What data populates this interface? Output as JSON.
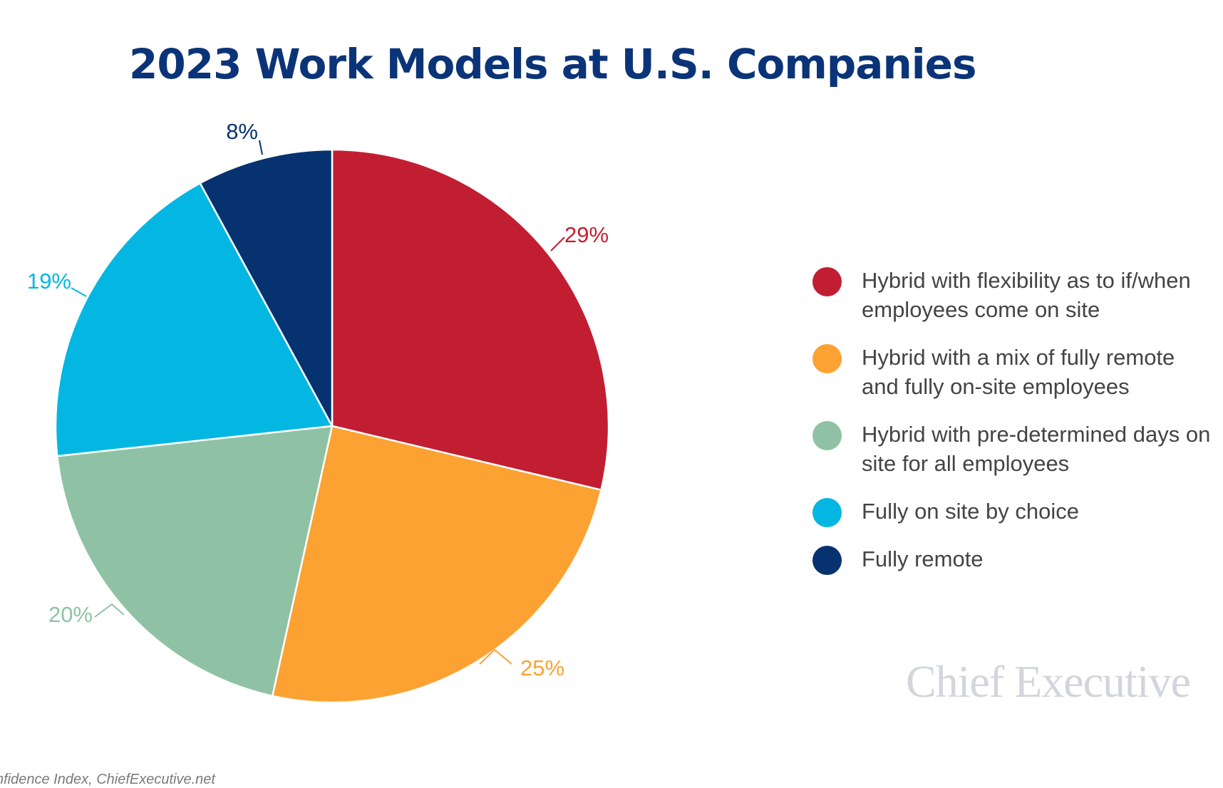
{
  "chart_data": {
    "type": "pie",
    "title": "2023 Work Models at U.S. Companies",
    "slices": [
      {
        "label": "Hybrid with flexibility as to if/when employees come on site",
        "value": 29,
        "value_label": "29%",
        "color": "#c21e32"
      },
      {
        "label": "Hybrid with a mix of fully remote and fully on-site employees",
        "value": 25,
        "value_label": "25%",
        "color": "#fca232"
      },
      {
        "label": "Hybrid with pre-determined days on site for all employees",
        "value": 20,
        "value_label": "20%",
        "color": "#8fc2a5"
      },
      {
        "label": "Fully on site by choice",
        "value": 19,
        "value_label": "19%",
        "color": "#04b7e3"
      },
      {
        "label": "Fully remote",
        "value": 8,
        "value_label": "8%",
        "color": "#063270"
      }
    ],
    "legend": "right",
    "start_angle": "12 o'clock, clockwise"
  },
  "branding": {
    "text": "Chief Executive"
  },
  "footer": {
    "source": "nfidence Index, ChiefExecutive.net"
  }
}
